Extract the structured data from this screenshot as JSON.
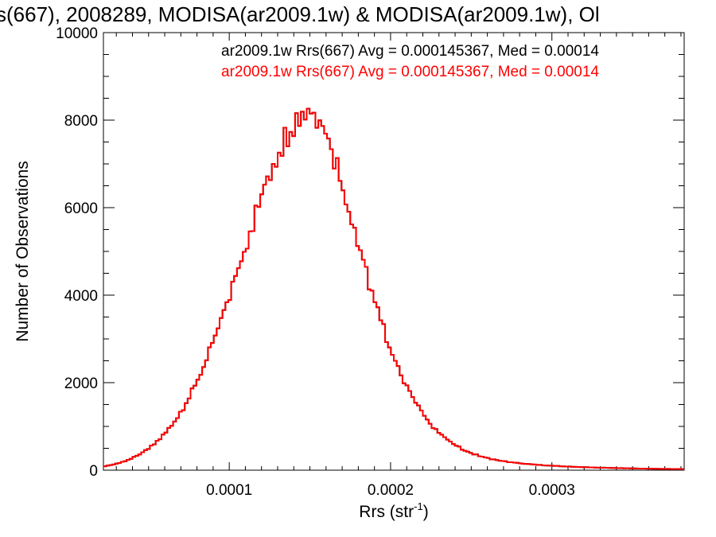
{
  "chart_data": {
    "type": "area",
    "title": "s(667), 2008289, MODISA(ar2009.1w) & MODISA(ar2009.1w), Ol",
    "xlabel_base": "Rrs (str",
    "xlabel_sup": "-1",
    "xlabel_close": ")",
    "ylabel": "Number of Observations",
    "xlim": [
      2.2e-05,
      0.000382
    ],
    "ylim": [
      0,
      10000
    ],
    "x_ticks": [
      0.0001,
      0.0002,
      0.0003
    ],
    "x_tick_labels": [
      "0.0001",
      "0.0002",
      "0.0003"
    ],
    "y_ticks": [
      0,
      2000,
      4000,
      6000,
      8000,
      10000
    ],
    "y_tick_labels": [
      "0",
      "2000",
      "4000",
      "6000",
      "8000",
      "10000"
    ],
    "bin_width": 1.8e-06,
    "histogram_params": {
      "peak_x": 0.000152,
      "peak_y": 8250,
      "sigma_left": 4.3e-05,
      "sigma_right": 3.6e-05,
      "tail_ratio": 0.55
    },
    "series": [
      {
        "name": "ar2009.1w Rrs(667) Avg = 0.000145367, Med = 0.00014",
        "color": "#000000"
      },
      {
        "name": "ar2009.1w Rrs(667) Avg = 0.000145367, Med = 0.00014",
        "color": "#ff0000"
      }
    ]
  }
}
